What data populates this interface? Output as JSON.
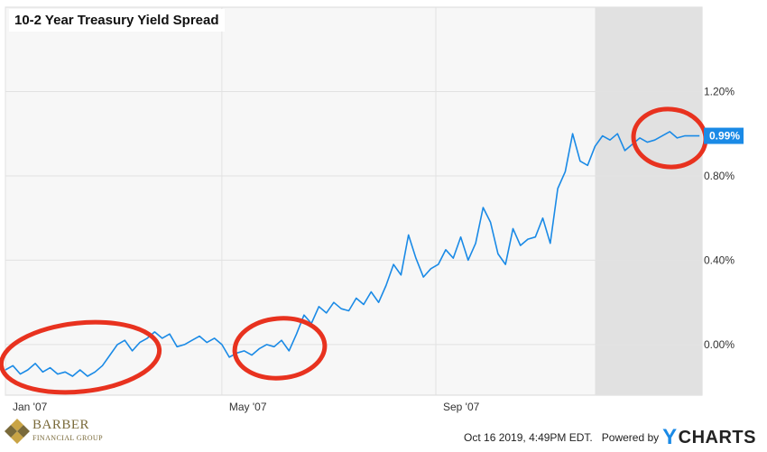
{
  "chart_data": {
    "type": "line",
    "title": "10-2 Year Treasury Yield Spread",
    "x_tick_labels": [
      "Jan '07",
      "May '07",
      "Sep '07"
    ],
    "y_tick_labels": [
      "0.00%",
      "0.40%",
      "0.80%",
      "1.20%"
    ],
    "y_ticks": [
      0.0,
      0.4,
      0.8,
      1.2
    ],
    "ylim": [
      -0.24,
      1.6
    ],
    "xlim": [
      0,
      280
    ],
    "grid": true,
    "last_value": 0.99,
    "last_value_label": "0.99%",
    "series": [
      {
        "color": "#1a8ae6",
        "x": [
          0,
          3,
          6,
          9,
          12,
          15,
          18,
          21,
          24,
          27,
          30,
          33,
          36,
          39,
          42,
          45,
          48,
          51,
          54,
          57,
          60,
          63,
          66,
          69,
          72,
          75,
          78,
          81,
          84,
          87,
          90,
          93,
          96,
          99,
          102,
          105,
          108,
          111,
          114,
          117,
          120,
          123,
          126,
          129,
          132,
          135,
          138,
          141,
          144,
          147,
          150,
          153,
          156,
          159,
          162,
          165,
          168,
          171,
          174,
          177,
          180,
          183,
          186,
          189,
          192,
          195,
          198,
          201,
          204,
          207,
          210,
          213,
          216,
          219,
          222,
          225,
          228,
          231,
          234,
          237,
          240,
          243,
          246,
          249,
          252,
          255,
          258,
          261,
          264,
          267,
          270,
          273,
          276,
          279
        ],
        "y": [
          -0.12,
          -0.1,
          -0.14,
          -0.12,
          -0.09,
          -0.13,
          -0.11,
          -0.14,
          -0.13,
          -0.15,
          -0.12,
          -0.15,
          -0.13,
          -0.1,
          -0.05,
          0.0,
          0.02,
          -0.03,
          0.01,
          0.03,
          0.06,
          0.03,
          0.05,
          -0.01,
          0.0,
          0.02,
          0.04,
          0.01,
          0.03,
          0.0,
          -0.06,
          -0.04,
          -0.03,
          -0.05,
          -0.02,
          0.0,
          -0.01,
          0.02,
          -0.03,
          0.05,
          0.14,
          0.1,
          0.18,
          0.15,
          0.2,
          0.17,
          0.16,
          0.22,
          0.19,
          0.25,
          0.2,
          0.28,
          0.38,
          0.33,
          0.52,
          0.41,
          0.32,
          0.36,
          0.38,
          0.45,
          0.41,
          0.51,
          0.4,
          0.48,
          0.65,
          0.58,
          0.43,
          0.38,
          0.55,
          0.47,
          0.5,
          0.51,
          0.6,
          0.48,
          0.74,
          0.82,
          1.0,
          0.87,
          0.85,
          0.94,
          0.99,
          0.97,
          1.0,
          0.92,
          0.95,
          0.98,
          0.96,
          0.97,
          0.99,
          1.01,
          0.98,
          0.99,
          0.99,
          0.99
        ]
      }
    ]
  },
  "logo": {
    "name": "BARBER",
    "sub": "FINANCIAL GROUP"
  },
  "footer": {
    "timestamp": "Oct 16 2019, 4:49PM EDT.",
    "powered_by": "Powered by",
    "brand_y": "Y",
    "brand_rest": "CHARTS"
  }
}
